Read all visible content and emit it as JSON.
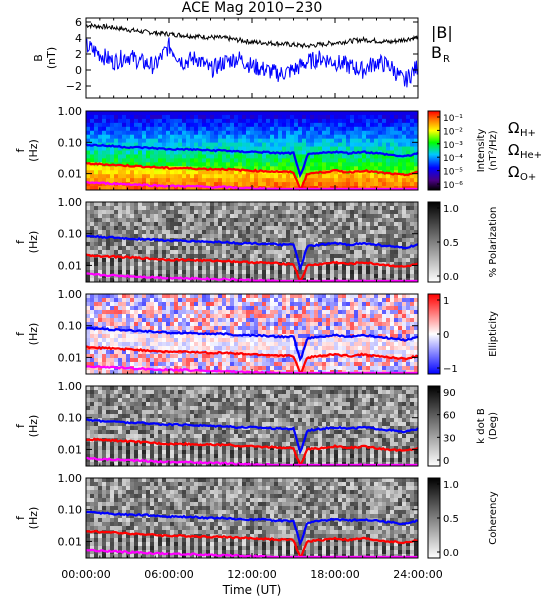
{
  "chart_data": [
    {
      "type": "line",
      "title": "ACE Mag 2010−230",
      "ylabel": "B",
      "yunit": "(nT)",
      "ylim": [
        -3.5,
        6.5
      ],
      "yticks": [
        "6",
        "4",
        "2",
        "0",
        "−2"
      ],
      "ytick_values": [
        6,
        4,
        2,
        0,
        -2
      ],
      "series": [
        {
          "name": "|B|",
          "color": "#000000",
          "x_hours": [
            0,
            2,
            4,
            6,
            8,
            10,
            12,
            14,
            16,
            18,
            20,
            22,
            24
          ],
          "values": [
            5.6,
            5.3,
            4.8,
            4.5,
            4.2,
            4.0,
            3.5,
            3.3,
            3.0,
            3.4,
            3.8,
            3.5,
            4.1
          ]
        },
        {
          "name": "B",
          "subscript": "R",
          "color": "#0000ff",
          "x_hours": [
            0,
            1,
            2,
            3,
            4,
            5,
            6,
            7,
            8,
            9,
            10,
            11,
            12,
            13,
            14,
            15,
            16,
            17,
            18,
            19,
            20,
            21,
            22,
            23,
            24
          ],
          "values": [
            3.0,
            2.0,
            1.0,
            1.8,
            1.0,
            0.5,
            3.0,
            1.0,
            1.5,
            0.0,
            1.0,
            1.5,
            0.5,
            0.0,
            -0.5,
            0.0,
            1.0,
            1.5,
            1.0,
            0.5,
            0.0,
            1.0,
            0.5,
            -1.5,
            0.5
          ]
        }
      ]
    },
    {
      "type": "heatmap",
      "ylabel": "f",
      "yunit": "(Hz)",
      "yticks": [
        "1.00",
        "0.10",
        "0.01"
      ],
      "colorbar": {
        "title": "Intensity",
        "unit": "(nT²/Hz)",
        "ticks": [
          "10⁻¹",
          "10⁻²",
          "10⁻³",
          "10⁻⁴",
          "10⁻⁵",
          "10⁻⁶"
        ],
        "map": "rainbow"
      },
      "overlays": [
        {
          "name": "Ω",
          "subscript": "H+",
          "color": "#0000ff"
        },
        {
          "name": "Ω",
          "subscript": "He+",
          "color": "#ff0000"
        },
        {
          "name": "Ω",
          "subscript": "O+",
          "color": "#ff00ff"
        }
      ]
    },
    {
      "type": "heatmap",
      "ylabel": "f",
      "yunit": "(Hz)",
      "yticks": [
        "1.00",
        "0.10",
        "0.01"
      ],
      "colorbar": {
        "title": "% Polarization",
        "ticks": [
          "1.0",
          "0.5",
          "0.0"
        ],
        "map": "gray"
      }
    },
    {
      "type": "heatmap",
      "ylabel": "f",
      "yunit": "(Hz)",
      "yticks": [
        "1.00",
        "0.10",
        "0.01"
      ],
      "colorbar": {
        "title": "Ellipticity",
        "ticks": [
          "1",
          "0",
          "−1"
        ],
        "map": "bwr"
      }
    },
    {
      "type": "heatmap",
      "ylabel": "f",
      "yunit": "(Hz)",
      "yticks": [
        "1.00",
        "0.10",
        "0.01"
      ],
      "colorbar": {
        "title": "k dot B",
        "unit": "(Deg)",
        "ticks": [
          "90",
          "60",
          "30",
          "0"
        ],
        "map": "gray"
      }
    },
    {
      "type": "heatmap",
      "ylabel": "f",
      "yunit": "(Hz)",
      "yticks": [
        "1.00",
        "0.10",
        "0.01"
      ],
      "colorbar": {
        "title": "Coherency",
        "ticks": [
          "1.0",
          "0.5",
          "0.0"
        ],
        "map": "gray"
      }
    }
  ],
  "gyro_lines": {
    "x_hours": [
      0,
      1,
      2,
      3,
      4,
      5,
      6,
      7,
      8,
      9,
      10,
      11,
      12,
      13,
      14,
      15,
      15.5,
      16,
      17,
      18,
      19,
      20,
      21,
      22,
      23,
      24
    ],
    "H+": [
      0.085,
      0.08,
      0.075,
      0.07,
      0.068,
      0.065,
      0.06,
      0.06,
      0.058,
      0.055,
      0.055,
      0.05,
      0.05,
      0.048,
      0.045,
      0.045,
      0.008,
      0.04,
      0.045,
      0.05,
      0.045,
      0.05,
      0.045,
      0.04,
      0.035,
      0.045
    ],
    "He+": [
      0.021,
      0.02,
      0.019,
      0.018,
      0.017,
      0.016,
      0.015,
      0.015,
      0.0145,
      0.014,
      0.014,
      0.013,
      0.0125,
      0.012,
      0.0115,
      0.011,
      0.003,
      0.01,
      0.011,
      0.0125,
      0.011,
      0.0125,
      0.011,
      0.01,
      0.009,
      0.011
    ],
    "O+": [
      0.0053,
      0.005,
      0.0048,
      0.0046,
      0.0044,
      0.0042,
      0.004,
      0.004,
      0.0039,
      0.0037,
      0.0037,
      0.0035,
      0.0034,
      0.0033,
      0.0031,
      0.003,
      0.003,
      0.003,
      0.003,
      0.0032,
      0.003,
      0.0032,
      0.003,
      0.003,
      0.003,
      0.003
    ]
  },
  "x_axis": {
    "label": "Time (UT)",
    "ticks": [
      "00:00:00",
      "06:00:00",
      "12:00:00",
      "18:00:00",
      "24:00:00"
    ],
    "tick_hours": [
      0,
      6,
      12,
      18,
      24
    ]
  }
}
